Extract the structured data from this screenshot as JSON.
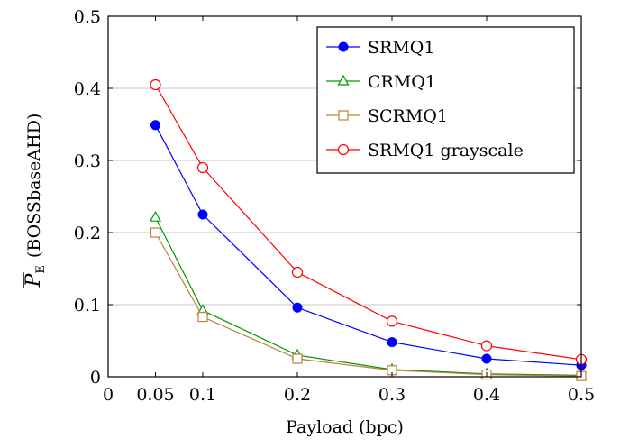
{
  "chart_data": {
    "type": "line",
    "xlabel": "Payload (bpc)",
    "ylabel": "(BOSSbaseAHD)",
    "ylabel_symbol": "P",
    "ylabel_subscript": "E",
    "xlim": [
      0,
      0.5
    ],
    "ylim": [
      0,
      0.5
    ],
    "x_ticks": [
      0,
      0.05,
      0.1,
      0.2,
      0.3,
      0.4,
      0.5
    ],
    "x_tick_labels": [
      "0",
      "0.05",
      "0.1",
      "0.2",
      "0.3",
      "0.4",
      "0.5"
    ],
    "y_ticks": [
      0,
      0.1,
      0.2,
      0.3,
      0.4,
      0.5
    ],
    "y_tick_labels": [
      "0",
      "0.1",
      "0.2",
      "0.3",
      "0.4",
      "0.5"
    ],
    "grid": "horizontal",
    "legend_position": "top-right",
    "x": [
      0.05,
      0.1,
      0.2,
      0.3,
      0.4,
      0.5
    ],
    "series": [
      {
        "name": "SRMQ1",
        "color": "#0000ff",
        "marker": "filled-circle",
        "values": [
          0.349,
          0.225,
          0.096,
          0.048,
          0.025,
          0.016
        ]
      },
      {
        "name": "CRMQ1",
        "color": "#009900",
        "marker": "open-triangle",
        "values": [
          0.221,
          0.092,
          0.03,
          0.01,
          0.004,
          0.002
        ]
      },
      {
        "name": "SCRMQ1",
        "color": "#bf8040",
        "marker": "open-square",
        "values": [
          0.2,
          0.083,
          0.025,
          0.009,
          0.003,
          0.001
        ]
      },
      {
        "name": "SRMQ1 grayscale",
        "color": "#ff0000",
        "marker": "open-circle",
        "values": [
          0.405,
          0.29,
          0.145,
          0.077,
          0.043,
          0.024
        ]
      }
    ]
  }
}
